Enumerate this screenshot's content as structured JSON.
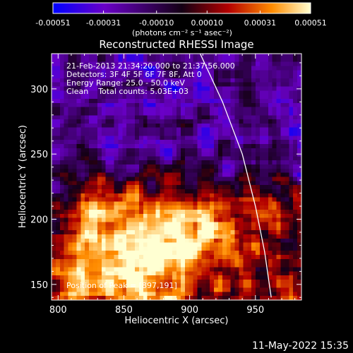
{
  "colorbar": {
    "tick_labels": [
      "-0.00051",
      "-0.00031",
      "-0.00010",
      "0.00010",
      "0.00031",
      "0.00051"
    ],
    "tick_values": [
      -0.00051,
      -0.00031,
      -0.0001,
      0.0001,
      0.00031,
      0.00051
    ],
    "range": [
      -0.00051,
      0.00051
    ],
    "unit_label": "(photons cm⁻² s⁻¹ asec⁻²)"
  },
  "chart_data": {
    "type": "heatmap",
    "title": "Reconstructed RHESSI Image",
    "xlabel": "Heliocentric X (arcsec)",
    "ylabel": "Heliocentric Y (arcsec)",
    "xlim": [
      795,
      985
    ],
    "ylim": [
      138,
      327
    ],
    "x_ticks": [
      800,
      850,
      900,
      950
    ],
    "y_ticks": [
      150,
      200,
      250,
      300
    ],
    "colormap": [
      "#0000ff",
      "#6a00c8",
      "#140014",
      "#b40000",
      "#ff8c00",
      "#ffffd2"
    ],
    "peak": [
      897,
      191
    ],
    "limb_curve": [
      [
        908,
        327
      ],
      [
        925,
        290
      ],
      [
        940,
        250
      ],
      [
        950,
        210
      ],
      [
        957,
        175
      ],
      [
        962,
        140
      ]
    ],
    "annotations": [
      "21-Feb-2013 21:34:20.000 to 21:37:56.000",
      "Detectors: 3F 4F 5F 6F 7F 8F, Att 0",
      "Energy Range: 25.0 - 50.0 keV",
      "Clean    Total counts: 5.03E+03"
    ],
    "peak_label": "Position of Peak = [897,191]"
  },
  "footer": {
    "timestamp": "11-May-2022 15:35"
  }
}
